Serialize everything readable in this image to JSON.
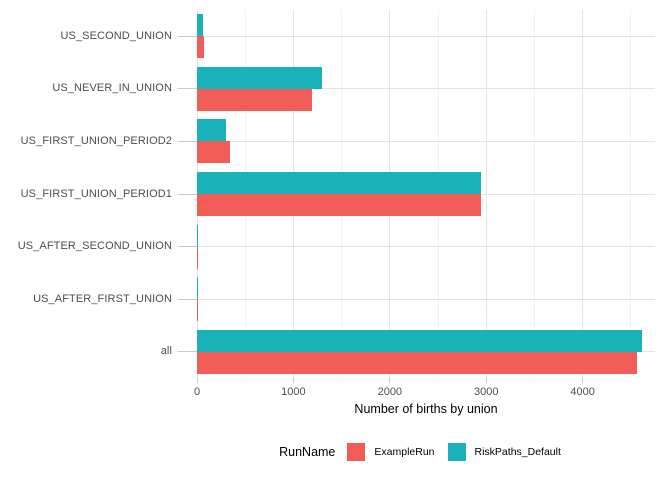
{
  "chart_data": {
    "type": "bar",
    "orientation": "horizontal",
    "title": "",
    "xlabel": "Number of births by union",
    "ylabel": "",
    "legend_title": "RunName",
    "legend_position": "bottom",
    "grid": true,
    "categories": [
      "US_SECOND_UNION",
      "US_NEVER_IN_UNION",
      "US_FIRST_UNION_PERIOD2",
      "US_FIRST_UNION_PERIOD1",
      "US_AFTER_SECOND_UNION",
      "US_AFTER_FIRST_UNION",
      "all"
    ],
    "series": [
      {
        "name": "ExampleRun",
        "color": "#F25D58",
        "values": [
          75,
          1190,
          340,
          2945,
          10,
          10,
          4565
        ]
      },
      {
        "name": "RiskPaths_Default",
        "color": "#18B2B8",
        "values": [
          62,
          1300,
          305,
          2950,
          9,
          9,
          4620
        ]
      }
    ],
    "series_draw_order_top_to_bottom": [
      "RiskPaths_Default",
      "ExampleRun"
    ],
    "x_ticks": [
      0,
      1000,
      2000,
      3000,
      4000
    ],
    "x_tick_labels": [
      "0",
      "1000",
      "2000",
      "3000",
      "4000"
    ],
    "x_minor_ticks": [
      500,
      1500,
      2500,
      3500,
      4500
    ],
    "xlim": [
      0,
      4750
    ]
  },
  "colors": {
    "background": "#FFFFFF",
    "grid_major": "#E3E3E3",
    "grid_minor": "#F2F2F2",
    "tick_mark": "#C9C9C9",
    "axis_text": "#4D4D4D",
    "title_text": "#000000"
  }
}
